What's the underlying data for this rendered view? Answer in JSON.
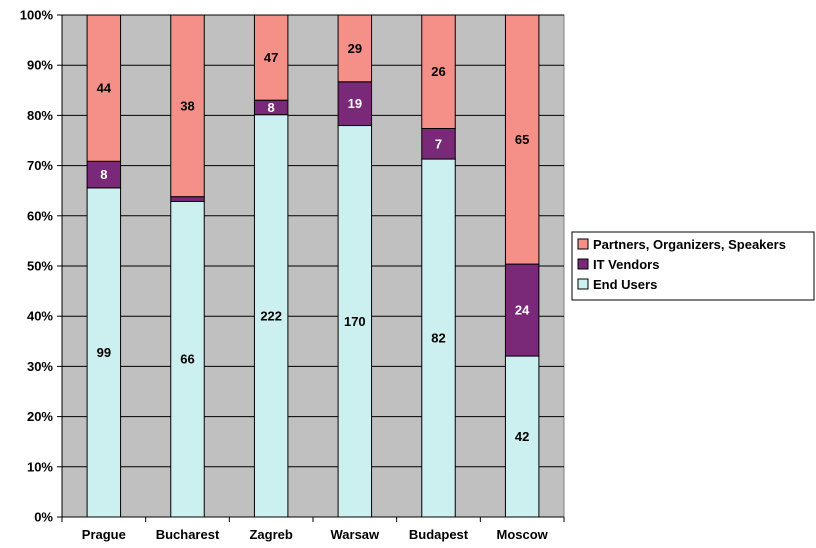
{
  "chart_data": {
    "type": "bar",
    "stacked": "percent",
    "categories": [
      "Prague",
      "Bucharest",
      "Zagreb",
      "Warsaw",
      "Budapest",
      "Moscow"
    ],
    "series": [
      {
        "name": "End Users",
        "values": [
          99,
          66,
          222,
          170,
          82,
          42
        ],
        "color": "#ccf0f0",
        "label_color": "#000000"
      },
      {
        "name": "IT Vendors",
        "values": [
          8,
          1,
          8,
          19,
          7,
          24
        ],
        "color": "#7a2878",
        "label_color": "#ffffff"
      },
      {
        "name": "Partners, Organizers, Speakers",
        "values": [
          44,
          38,
          47,
          29,
          26,
          65
        ],
        "color": "#f59088",
        "label_color": "#000000"
      }
    ],
    "legend_order": [
      "Partners, Organizers, Speakers",
      "IT Vendors",
      "End Users"
    ],
    "y_ticks": [
      "0%",
      "10%",
      "20%",
      "30%",
      "40%",
      "50%",
      "60%",
      "70%",
      "80%",
      "90%",
      "100%"
    ],
    "ylim": [
      0,
      100
    ],
    "grid": true,
    "plot_background": "#c0c0c0",
    "legend_position": "right",
    "title": "",
    "xlabel": "",
    "ylabel": ""
  }
}
